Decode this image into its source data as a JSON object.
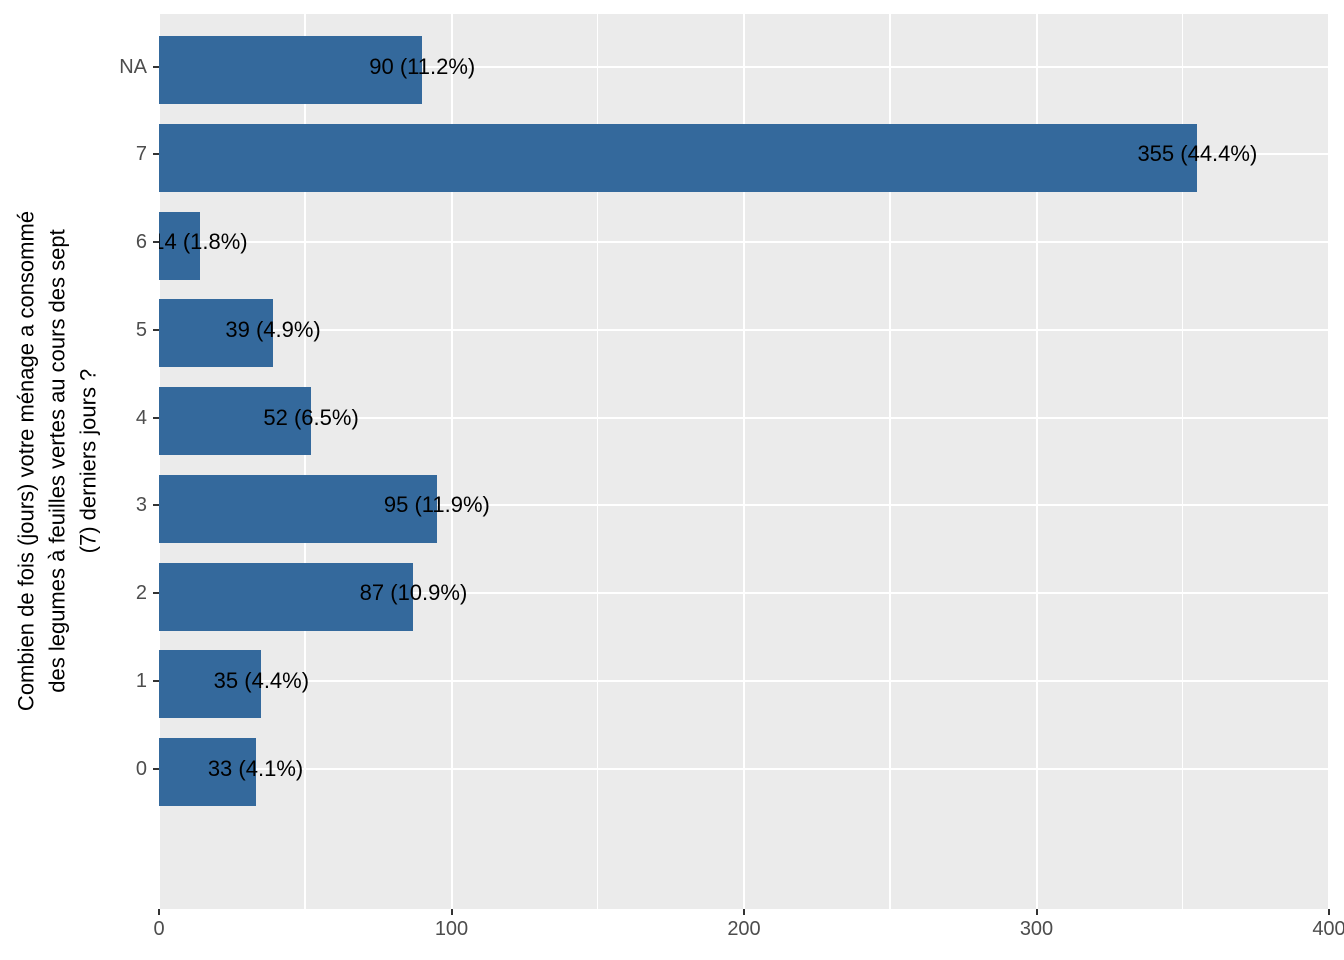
{
  "chart_data": {
    "type": "bar",
    "orientation": "horizontal",
    "title": "",
    "xlabel": "",
    "ylabel": "Combien de fois (jours) votre ménage a consommé des legumes à feuilles vertes au cours des sept (7) derniers jours ?",
    "ylabel_lines": [
      "Combien de fois (jours) votre ménage a consommé",
      "des legumes à feuilles vertes au cours des sept",
      "(7) derniers jours ?"
    ],
    "categories": [
      "NA",
      "7",
      "6",
      "5",
      "4",
      "3",
      "2",
      "1",
      "0"
    ],
    "values": [
      90,
      355,
      14,
      39,
      52,
      95,
      87,
      35,
      33
    ],
    "bar_labels": [
      "90 (11.2%)",
      "355 (44.4%)",
      "14 (1.8%)",
      "39 (4.9%)",
      "52 (6.5%)",
      "95 (11.9%)",
      "87 (10.9%)",
      "35 (4.4%)",
      "33 (4.1%)"
    ],
    "x_ticks": [
      0,
      100,
      200,
      300,
      400
    ],
    "x_minor_ticks": [
      50,
      150,
      250,
      350
    ],
    "xlim": [
      0,
      400
    ],
    "legend_position": "none",
    "grid": true,
    "colors": {
      "bar_fill": "#34699C",
      "panel_background": "#EBEBEB",
      "grid_major": "#FFFFFF",
      "grid_minor": "#FFFFFF",
      "axis_text": "#4D4D4D",
      "tick_mark": "#333333",
      "bar_label_text": "#000000",
      "page_background": "#FFFFFF"
    }
  }
}
